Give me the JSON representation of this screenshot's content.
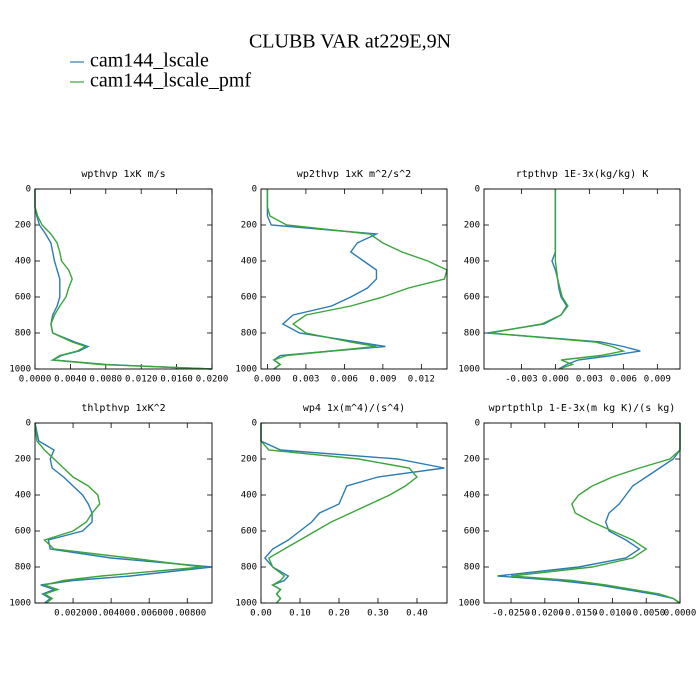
{
  "title": "CLUBB VAR at229E,9N",
  "chart_data": [
    {
      "type": "line",
      "title": "wpthvp  1xK m/s",
      "y": [
        0,
        100,
        150,
        200,
        250,
        300,
        350,
        400,
        450,
        500,
        550,
        600,
        650,
        700,
        750,
        800,
        850,
        875,
        900,
        925,
        950,
        975,
        1000
      ],
      "ylim": [
        0,
        1000
      ],
      "y_reversed": true,
      "yticks": [
        0,
        200,
        400,
        600,
        800,
        1000
      ],
      "xlim": [
        0,
        0.02
      ],
      "xticks": [
        {
          "value": 0,
          "label": "0.0000"
        },
        {
          "value": 0.004,
          "label": "0.0040"
        },
        {
          "value": 0.008,
          "label": "0.0080"
        },
        {
          "value": 0.012,
          "label": "0.0120"
        },
        {
          "value": 0.016,
          "label": "0.0160"
        },
        {
          "value": 0.02,
          "label": "0.0200"
        }
      ],
      "series": [
        {
          "name": "cam144_lscale",
          "color": "#2b7bb5",
          "values": [
            0,
            0,
            0.0002,
            0.0005,
            0.0012,
            0.0018,
            0.002,
            0.0022,
            0.0025,
            0.0028,
            0.0028,
            0.0028,
            0.0025,
            0.002,
            0.0018,
            0.002,
            0.0045,
            0.006,
            0.005,
            0.003,
            0.002,
            0.008,
            0.02
          ]
        },
        {
          "name": "cam144_lscale_pmf",
          "color": "#3aa53a",
          "values": [
            0,
            0,
            0.0003,
            0.0008,
            0.0018,
            0.0025,
            0.0028,
            0.003,
            0.0038,
            0.0042,
            0.0038,
            0.0035,
            0.0028,
            0.0022,
            0.0018,
            0.002,
            0.0042,
            0.0057,
            0.0048,
            0.0028,
            0.002,
            0.0075,
            0.02
          ]
        }
      ]
    },
    {
      "type": "line",
      "title": "wp2thvp  1xK m^2/s^2",
      "y": [
        0,
        100,
        150,
        200,
        250,
        300,
        350,
        400,
        450,
        500,
        550,
        600,
        650,
        700,
        750,
        800,
        850,
        875,
        900,
        925,
        950,
        975,
        1000
      ],
      "ylim": [
        0,
        1000
      ],
      "y_reversed": true,
      "yticks": [
        0,
        200,
        400,
        600,
        800,
        1000
      ],
      "xlim": [
        -0.0005,
        0.014
      ],
      "xticks": [
        {
          "value": 0,
          "label": "0.000"
        },
        0.003,
        0.006,
        0.009,
        0.012
      ],
      "series": [
        {
          "name": "cam144_lscale",
          "color": "#2b7bb5",
          "values": [
            0,
            0,
            0,
            0.0003,
            0.0085,
            0.007,
            0.0065,
            0.0075,
            0.0085,
            0.0085,
            0.0078,
            0.0065,
            0.005,
            0.002,
            0.0012,
            0.0025,
            0.007,
            0.0092,
            0.005,
            0.001,
            0.0005,
            0.001,
            0.0005
          ]
        },
        {
          "name": "cam144_lscale_pmf",
          "color": "#3aa53a",
          "values": [
            0,
            0,
            0.0002,
            0.0015,
            0.008,
            0.009,
            0.0105,
            0.0125,
            0.014,
            0.0138,
            0.011,
            0.009,
            0.0065,
            0.003,
            0.002,
            0.003,
            0.0065,
            0.0085,
            0.005,
            0.0015,
            0.0005,
            0.001,
            0.0005
          ]
        }
      ]
    },
    {
      "type": "line",
      "title": "rtpthvp  1E-3x(kg/kg) K",
      "y": [
        0,
        100,
        150,
        200,
        250,
        300,
        350,
        400,
        450,
        500,
        550,
        600,
        650,
        700,
        750,
        800,
        850,
        875,
        900,
        925,
        950,
        975,
        1000
      ],
      "ylim": [
        0,
        1000
      ],
      "y_reversed": true,
      "yticks": [
        0,
        200,
        400,
        600,
        800,
        1000
      ],
      "xlim": [
        -0.0063,
        0.011
      ],
      "xticks": [
        -0.003,
        {
          "value": 0,
          "label": "0.000"
        },
        0.003,
        0.006,
        0.009
      ],
      "series": [
        {
          "name": "cam144_lscale",
          "color": "#2b7bb5",
          "values": [
            0,
            0,
            0,
            0,
            0,
            0,
            0,
            -0.0003,
            0,
            0.0002,
            0.0003,
            0.0005,
            0.001,
            0.0005,
            -0.001,
            -0.006,
            0.004,
            0.006,
            0.0075,
            0.005,
            0.002,
            0.001,
            0.0003
          ]
        },
        {
          "name": "cam144_lscale_pmf",
          "color": "#3aa53a",
          "values": [
            0,
            0,
            0,
            0,
            0,
            0,
            0,
            0,
            0.0001,
            0.0002,
            0.0004,
            0.0006,
            0.0011,
            0.0005,
            -0.0012,
            -0.0058,
            0.0035,
            0.005,
            0.006,
            0.004,
            0.0005,
            0.0015,
            0.0003
          ]
        }
      ]
    },
    {
      "type": "line",
      "title": "thlpthvp  1xK^2",
      "y": [
        0,
        100,
        150,
        200,
        250,
        300,
        350,
        400,
        450,
        500,
        550,
        600,
        650,
        700,
        750,
        800,
        850,
        875,
        900,
        925,
        950,
        975,
        1000
      ],
      "ylim": [
        0,
        1000
      ],
      "y_reversed": true,
      "yticks": [
        0,
        200,
        400,
        600,
        800,
        1000
      ],
      "xlim": [
        0,
        0.0093
      ],
      "xticks": [
        {
          "value": 0.002,
          "label": "0.00200"
        },
        {
          "value": 0.004,
          "label": "0.00400"
        },
        {
          "value": 0.006,
          "label": "0.00600"
        },
        {
          "value": 0.008,
          "label": "0.00800"
        }
      ],
      "series": [
        {
          "name": "cam144_lscale",
          "color": "#2b7bb5",
          "values": [
            0,
            0.0002,
            0.001,
            0.0008,
            0.0009,
            0.0015,
            0.002,
            0.0025,
            0.0028,
            0.003,
            0.003,
            0.0025,
            0.0007,
            0.0008,
            0.004,
            0.0093,
            0.005,
            0.002,
            0.0003,
            0.001,
            0.0004,
            0.0008,
            0.0005
          ]
        },
        {
          "name": "cam144_lscale_pmf",
          "color": "#3aa53a",
          "values": [
            0,
            0.0001,
            0.0005,
            0.001,
            0.0015,
            0.002,
            0.0028,
            0.0033,
            0.0034,
            0.003,
            0.0027,
            0.002,
            0.0005,
            0.001,
            0.005,
            0.0088,
            0.0035,
            0.0015,
            0.0005,
            0.0012,
            0.0005,
            0.0009,
            0.0006
          ]
        }
      ]
    },
    {
      "type": "line",
      "title": "wp4  1x(m^4)/(s^4)",
      "y": [
        0,
        100,
        150,
        200,
        250,
        300,
        350,
        400,
        450,
        500,
        550,
        600,
        650,
        700,
        750,
        800,
        850,
        875,
        900,
        925,
        950,
        975,
        1000
      ],
      "ylim": [
        0,
        1000
      ],
      "y_reversed": true,
      "yticks": [
        0,
        200,
        400,
        600,
        800,
        1000
      ],
      "xlim": [
        0,
        0.477
      ],
      "xticks": [
        {
          "value": 0,
          "label": "0.00"
        },
        {
          "value": 0.1,
          "label": "0.10"
        },
        {
          "value": 0.2,
          "label": "0.20"
        },
        {
          "value": 0.3,
          "label": "0.30"
        },
        {
          "value": 0.4,
          "label": "0.40"
        }
      ],
      "series": [
        {
          "name": "cam144_lscale",
          "color": "#2b7bb5",
          "values": [
            0,
            0,
            0.05,
            0.35,
            0.47,
            0.3,
            0.22,
            0.21,
            0.2,
            0.15,
            0.13,
            0.1,
            0.07,
            0.03,
            0.01,
            0.03,
            0.07,
            0.06,
            0.03,
            0.05,
            0.04,
            0.05,
            0.04
          ]
        },
        {
          "name": "cam144_lscale_pmf",
          "color": "#3aa53a",
          "values": [
            0,
            0,
            0.02,
            0.25,
            0.38,
            0.4,
            0.37,
            0.33,
            0.28,
            0.23,
            0.18,
            0.14,
            0.1,
            0.06,
            0.02,
            0.03,
            0.06,
            0.05,
            0.03,
            0.05,
            0.04,
            0.05,
            0.04
          ]
        }
      ]
    },
    {
      "type": "line",
      "title": "wprtpthlp  1-E-3x(m kg K)/(s kg)",
      "y": [
        0,
        100,
        150,
        200,
        250,
        300,
        350,
        400,
        450,
        500,
        550,
        600,
        650,
        700,
        750,
        800,
        850,
        875,
        900,
        925,
        950,
        975,
        1000
      ],
      "ylim": [
        0,
        1000
      ],
      "y_reversed": true,
      "yticks": [
        0,
        200,
        400,
        600,
        800,
        1000
      ],
      "xlim": [
        -0.029,
        0
      ],
      "xticks": [
        {
          "value": -0.025,
          "label": "-0.0250"
        },
        {
          "value": -0.02,
          "label": "-0.0200"
        },
        {
          "value": -0.015,
          "label": "-0.0150"
        },
        {
          "value": -0.01,
          "label": "-0.0100"
        },
        {
          "value": -0.005,
          "label": "-0.0050"
        },
        {
          "value": 0,
          "label": "0.0000"
        }
      ],
      "series": [
        {
          "name": "cam144_lscale",
          "color": "#2b7bb5",
          "values": [
            0,
            0,
            0,
            -0.001,
            -0.003,
            -0.005,
            -0.007,
            -0.008,
            -0.009,
            -0.0105,
            -0.011,
            -0.0105,
            -0.008,
            -0.006,
            -0.008,
            -0.015,
            -0.027,
            -0.018,
            -0.012,
            -0.008,
            -0.004,
            -0.001,
            0
          ]
        },
        {
          "name": "cam144_lscale_pmf",
          "color": "#3aa53a",
          "values": [
            0,
            0,
            0,
            -0.0015,
            -0.006,
            -0.01,
            -0.013,
            -0.015,
            -0.016,
            -0.0155,
            -0.013,
            -0.01,
            -0.007,
            -0.005,
            -0.007,
            -0.013,
            -0.025,
            -0.016,
            -0.011,
            -0.007,
            -0.003,
            -0.001,
            0
          ]
        }
      ]
    }
  ]
}
